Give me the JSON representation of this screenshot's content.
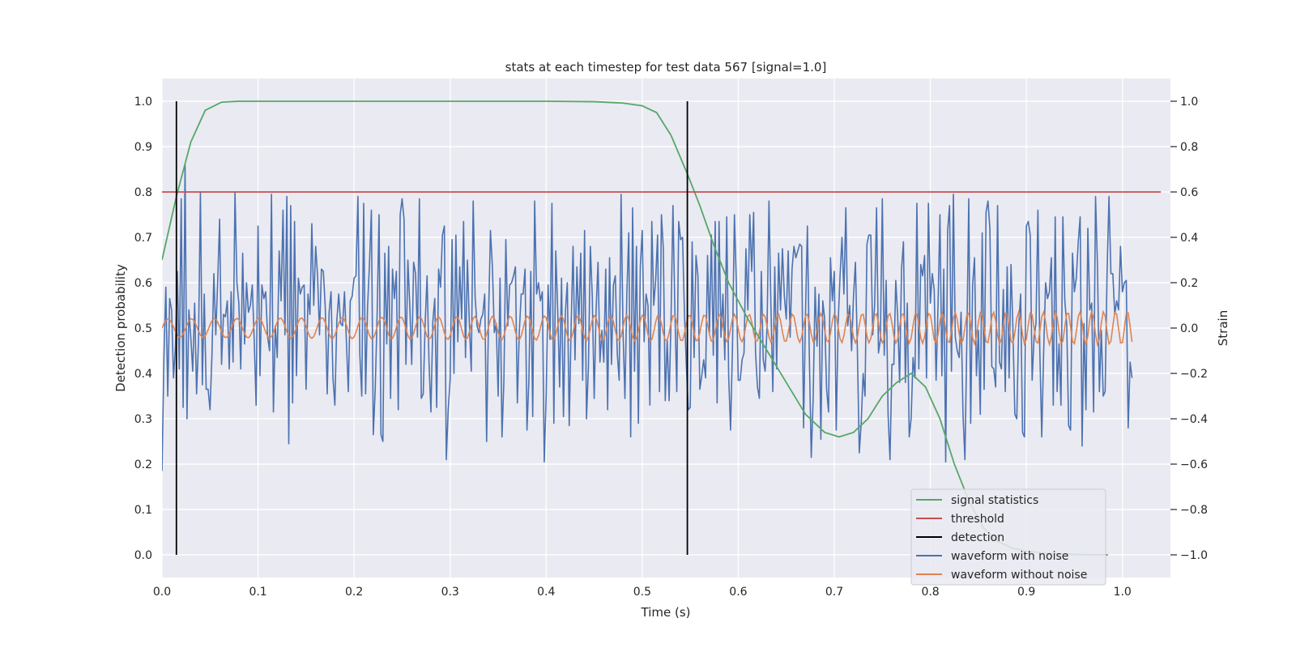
{
  "chart_data": {
    "type": "line",
    "title": "stats at each timestep for test data 567 [signal=1.0]",
    "xlabel": "Time (s)",
    "ylabel": "Detection probability",
    "y2label": "Strain",
    "xlim": [
      0.0,
      1.05
    ],
    "ylim": [
      -0.05,
      1.05
    ],
    "y2lim": [
      -1.1,
      1.1
    ],
    "xticks": [
      "0.0",
      "0.1",
      "0.2",
      "0.3",
      "0.4",
      "0.5",
      "0.6",
      "0.7",
      "0.8",
      "0.9",
      "1.0"
    ],
    "yticks": [
      "0.0",
      "0.1",
      "0.2",
      "0.3",
      "0.4",
      "0.5",
      "0.6",
      "0.7",
      "0.8",
      "0.9",
      "1.0"
    ],
    "y2ticks": [
      "−1.0",
      "−0.8",
      "−0.6",
      "−0.4",
      "−0.2",
      "0.0",
      "0.2",
      "0.4",
      "0.6",
      "0.8",
      "1.0"
    ],
    "grid": true,
    "legend_position": "lower-right",
    "legend": [
      "signal statistics",
      "threshold",
      "detection",
      "waveform with noise",
      "waveform without noise"
    ],
    "colors": {
      "signal_statistics": "#55a868",
      "threshold": "#c44e52",
      "detection": "#000000",
      "waveform_with_noise": "#4c72b0",
      "waveform_without_noise": "#dd8452",
      "plot_background": "#eaeaf2",
      "grid": "#ffffff"
    },
    "series": [
      {
        "name": "signal statistics",
        "axis": "left",
        "x": [
          0.0,
          0.015,
          0.03,
          0.045,
          0.062,
          0.08,
          0.1,
          0.15,
          0.2,
          0.3,
          0.4,
          0.45,
          0.48,
          0.5,
          0.515,
          0.53,
          0.547,
          0.56,
          0.575,
          0.59,
          0.61,
          0.63,
          0.65,
          0.67,
          0.69,
          0.705,
          0.72,
          0.735,
          0.75,
          0.765,
          0.78,
          0.795,
          0.81,
          0.825,
          0.84,
          0.855,
          0.87,
          0.885,
          0.9,
          0.925,
          0.95,
          0.97,
          0.985
        ],
        "y": [
          0.65,
          0.79,
          0.91,
          0.98,
          0.998,
          1.0,
          1.0,
          1.0,
          1.0,
          1.0,
          1.0,
          0.999,
          0.996,
          0.99,
          0.975,
          0.925,
          0.84,
          0.77,
          0.68,
          0.6,
          0.52,
          0.45,
          0.38,
          0.31,
          0.27,
          0.26,
          0.27,
          0.3,
          0.35,
          0.38,
          0.4,
          0.37,
          0.3,
          0.2,
          0.12,
          0.06,
          0.03,
          0.015,
          0.008,
          0.003,
          0.001,
          0.0,
          0.0
        ]
      },
      {
        "name": "threshold",
        "axis": "left",
        "x": [
          0.0,
          1.04
        ],
        "y": [
          0.8,
          0.8
        ]
      },
      {
        "name": "detection",
        "axis": "left",
        "type": "vlines",
        "x": [
          0.015,
          0.547
        ],
        "y": [
          0.0,
          1.0
        ]
      },
      {
        "name": "waveform with noise",
        "axis": "right",
        "x_start": 0.0,
        "x_step": 0.002,
        "y": [
          -0.63,
          -0.13,
          0.18,
          -0.3,
          0.13,
          0.08,
          -0.22,
          -0.08,
          0.25,
          -0.18,
          0.57,
          -0.35,
          0.72,
          -0.4,
          0.08,
          -0.04,
          -0.19,
          0.11,
          -0.29,
          -0.06,
          0.6,
          -0.25,
          0.15,
          -0.27,
          -0.27,
          -0.36,
          -0.12,
          0.24,
          -0.03,
          0.21,
          0.48,
          -0.16,
          0.06,
          0.05,
          0.12,
          -0.18,
          0.16,
          -0.15,
          0.6,
          0.2,
          0.11,
          -0.18,
          0.33,
          -0.07,
          0.2,
          0.07,
          0.1,
          0.19,
          -0.05,
          -0.34,
          0.45,
          -0.21,
          0.19,
          0.13,
          0.16,
          -0.04,
          -0.1,
          0.59,
          -0.37,
          0.01,
          -0.13,
          0.34,
          0.12,
          0.52,
          -0.03,
          0.58,
          -0.51,
          0.54,
          -0.33,
          0.47,
          -0.21,
          0.22,
          0.15,
          0.18,
          0.19,
          -0.27,
          0.15,
          0.06,
          0.46,
          0.1,
          0.36,
          0.23,
          -0.03,
          0.26,
          0.25,
          0.09,
          -0.29,
          0.07,
          0.16,
          -0.22,
          -0.34,
          0.03,
          0.15,
          0.02,
          0.01,
          0.16,
          -0.06,
          -0.28,
          0.12,
          0.14,
          0.22,
          0.23,
          0.58,
          -0.12,
          -0.3,
          0.55,
          -0.29,
          0.09,
          0.28,
          0.52,
          -0.47,
          -0.27,
          0.06,
          0.5,
          -0.47,
          -0.5,
          0.33,
          -0.07,
          0.36,
          -0.31,
          0.26,
          0.13,
          0.25,
          -0.36,
          0.5,
          0.57,
          0.48,
          -0.16,
          0.3,
          0.1,
          -0.16,
          0.29,
          0.24,
          -0.04,
          0.57,
          -0.31,
          -0.29,
          0.02,
          0.23,
          -0.15,
          -0.37,
          0.03,
          0.13,
          -0.35,
          0.26,
          0.18,
          0.41,
          0.45,
          -0.58,
          -0.36,
          -0.23,
          0.39,
          -0.2,
          0.41,
          -0.06,
          0.27,
          0.04,
          0.47,
          -0.13,
          0.3,
          0.02,
          -0.19,
          0.56,
          0.14,
          0.01,
          -0.02,
          0.04,
          0.06,
          0.15,
          -0.5,
          0.05,
          0.43,
          0.27,
          -0.02,
          0.02,
          -0.3,
          0.22,
          -0.48,
          -0.23,
          0.39,
          0.01,
          0.19,
          0.2,
          0.23,
          0.27,
          -0.33,
          -0.02,
          0.15,
          0.15,
          0.26,
          -0.45,
          -0.23,
          0.25,
          -0.39,
          0.56,
          0.15,
          0.2,
          0.12,
          0.16,
          -0.59,
          -0.3,
          0.19,
          -0.05,
          0.55,
          -0.42,
          0.34,
          0.08,
          -0.26,
          0.22,
          -0.39,
          0.07,
          0.2,
          -0.43,
          0.01,
          0.36,
          -0.14,
          0.27,
          0.02,
          0.33,
          -0.23,
          0.43,
          -0.4,
          -0.17,
          0.36,
          0.14,
          -0.31,
          0.08,
          0.29,
          -0.15,
          -0.01,
          -0.15,
          0.26,
          -0.36,
          0.31,
          -0.16,
          0.19,
          0.23,
          -0.11,
          -0.23,
          0.59,
          -0.01,
          -0.31,
          0.15,
          0.42,
          -0.48,
          0.53,
          -0.19,
          0.36,
          -0.42,
          0.27,
          0.43,
          -0.06,
          0.15,
          0.1,
          -0.34,
          0.47,
          0.1,
          0.21,
          0.41,
          -0.28,
          0.5,
          0.35,
          -0.32,
          -0.05,
          -0.32,
          0.04,
          0.54,
          0.08,
          -0.28,
          0.47,
          0.39,
          0.4,
          0.06,
          -0.17,
          -0.36,
          -0.35,
          0.38,
          -0.13,
          0.32,
          0.23,
          -0.27,
          -0.21,
          -0.14,
          -0.22,
          0.32,
          -0.02,
          0.41,
          -0.12,
          0.47,
          -0.33,
          0.47,
          -0.04,
          0.15,
          -0.14,
          0.49,
          -0.21,
          -0.45,
          -0.08,
          0.5,
          0.2,
          -0.23,
          -0.23,
          -0.14,
          -0.11,
          0.35,
          0.08,
          0.5,
          0.25,
          0.51,
          -0.11,
          -0.26,
          -0.31,
          0.25,
          -0.14,
          -0.19,
          0.01,
          0.56,
          0.1,
          -0.28,
          0.27,
          -0.18,
          0.33,
          0.08,
          0.35,
          0.14,
          0.04,
          0.34,
          -0.04,
          0.26,
          0.36,
          0.31,
          0.34,
          0.37,
          0.36,
          -0.44,
          0.06,
          0.45,
          -0.12,
          -0.57,
          -0.31,
          0.18,
          -0.08,
          0.15,
          -0.49,
          0.12,
          0.04,
          -0.27,
          -0.37,
          0.31,
          0.12,
          0.25,
          -0.45,
          0.02,
          0.23,
          0.4,
          0.15,
          0.53,
          0.01,
          0.1,
          -0.1,
          0.14,
          0.29,
          -0.09,
          -0.55,
          -0.42,
          -0.2,
          -0.3,
          0.37,
          0.41,
          0.41,
          -0.03,
          0.1,
          0.53,
          -0.11,
          -0.05,
          0.57,
          -0.12,
          0.21,
          -0.38,
          -0.58,
          -0.16,
          -0.16,
          0.21,
          0.05,
          -0.24,
          0.26,
          0.38,
          -0.24,
          0.11,
          -0.48,
          -0.4,
          -0.13,
          -0.22,
          0.55,
          -0.18,
          0.28,
          0.23,
          0.32,
          -0.22,
          0.55,
          0.11,
          0.24,
          0.17,
          -0.23,
          0.1,
          0.5,
          -0.21,
          0.26,
          -0.59,
          0.43,
          0.54,
          -0.19,
          0.59,
          -0.04,
          -0.1,
          -0.13,
          0.07,
          -0.38,
          -0.58,
          -0.05,
          0.57,
          -0.42,
          0.19,
          0.31,
          -0.21,
          -0.01,
          -0.38,
          0.42,
          -0.27,
          0.51,
          0.56,
          0.44,
          -0.17,
          -0.18,
          -0.26,
          0.54,
          -0.15,
          -0.18,
          0.17,
          -0.28,
          0.27,
          -0.22,
          0.28,
          -0.01,
          -0.38,
          -0.4,
          0.01,
          0.15,
          -0.46,
          -0.48,
          0.45,
          0.47,
          0.41,
          -0.23,
          -0.04,
          0.02,
          0.52,
          -0.1,
          -0.48,
          -0.1,
          0.2,
          0.13,
          0.16,
          0.31,
          -0.34,
          0.49,
          -0.28,
          -0.07,
          -0.34,
          0.49,
          0.12,
          0.02,
          -0.43,
          -0.45,
          0.33,
          0.16,
          0.22,
          0.38,
          0.49,
          -0.52,
          0.02,
          -0.36,
          0.44,
          0.08,
          0.11,
          -0.37,
          0.58,
          0.28,
          -0.28,
          -0.01,
          -0.3,
          -0.28,
          0.24,
          0.58,
          0.24,
          0.24,
          0.06,
          0.12,
          0.08,
          0.36,
          0.16,
          0.2,
          0.21,
          -0.44,
          -0.15,
          -0.22
        ]
      },
      {
        "name": "waveform without noise",
        "axis": "right",
        "x_start": 0.0,
        "x_step": 0.002,
        "amplitude_start": 0.04,
        "amplitude_end": 0.075,
        "frequency_start_hz": 40,
        "frequency_end_hz": 82
      }
    ]
  }
}
